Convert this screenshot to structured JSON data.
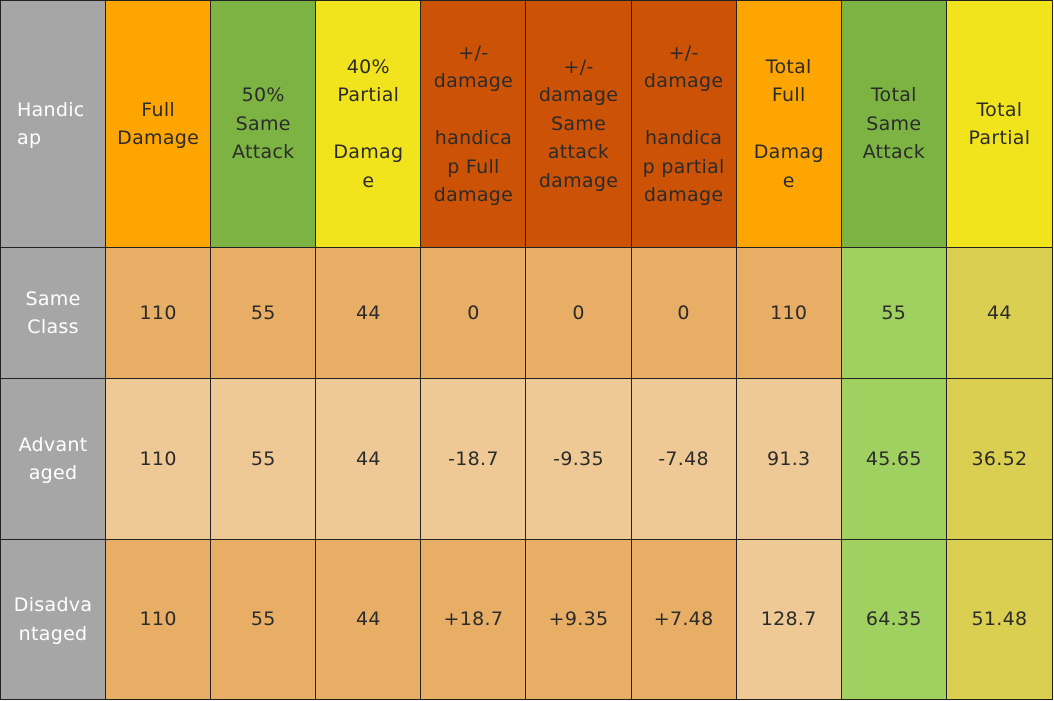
{
  "colors": {
    "gray": "#a6a6a6",
    "orange": "#ffa500",
    "green": "#7cb342",
    "yellow": "#f1e31c",
    "rust": "#cc5205",
    "tan_dark": "#e8ae66",
    "tan_light": "#eec895",
    "green_light": "#a0d060",
    "olive": "#dacf50"
  },
  "headers": [
    {
      "text": "Handic\nap",
      "color": "gray"
    },
    {
      "text": "Full\nDamage",
      "color": "orange"
    },
    {
      "text": "50%\nSame\nAttack",
      "color": "green"
    },
    {
      "text": "40%\nPartial\n\nDamag\ne",
      "color": "yellow"
    },
    {
      "text": "+/-\ndamage\n\nhandica\np Full\ndamage",
      "color": "rust"
    },
    {
      "text": "+/-\ndamage\nSame\nattack\ndamage",
      "color": "rust"
    },
    {
      "text": "+/-\ndamage\n\nhandica\np partial\ndamage",
      "color": "rust"
    },
    {
      "text": "Total\nFull\n\nDamag\ne",
      "color": "orange"
    },
    {
      "text": "Total\nSame\nAttack",
      "color": "green"
    },
    {
      "text": "Total\nPartial",
      "color": "yellow"
    }
  ],
  "rows": [
    {
      "cells": [
        "Same\nClass",
        "110",
        "55",
        "44",
        "0",
        "0",
        "0",
        "110",
        "55",
        "44"
      ],
      "colors": [
        "gray",
        "tan_dark",
        "tan_dark",
        "tan_dark",
        "tan_dark",
        "tan_dark",
        "tan_dark",
        "tan_dark",
        "green_light",
        "olive"
      ]
    },
    {
      "cells": [
        "Advant\naged",
        "110",
        "55",
        "44",
        "-18.7",
        "-9.35",
        "-7.48",
        "91.3",
        "45.65",
        "36.52"
      ],
      "colors": [
        "gray",
        "tan_light",
        "tan_light",
        "tan_light",
        "tan_light",
        "tan_light",
        "tan_light",
        "tan_light",
        "green_light",
        "olive"
      ]
    },
    {
      "cells": [
        "Disadva\nntaged",
        "110",
        "55",
        "44",
        "+18.7",
        "+9.35",
        "+7.48",
        "128.7",
        "64.35",
        "51.48"
      ],
      "colors": [
        "gray",
        "tan_dark",
        "tan_dark",
        "tan_dark",
        "tan_dark",
        "tan_dark",
        "tan_dark",
        "tan_light",
        "green_light",
        "olive"
      ]
    }
  ]
}
